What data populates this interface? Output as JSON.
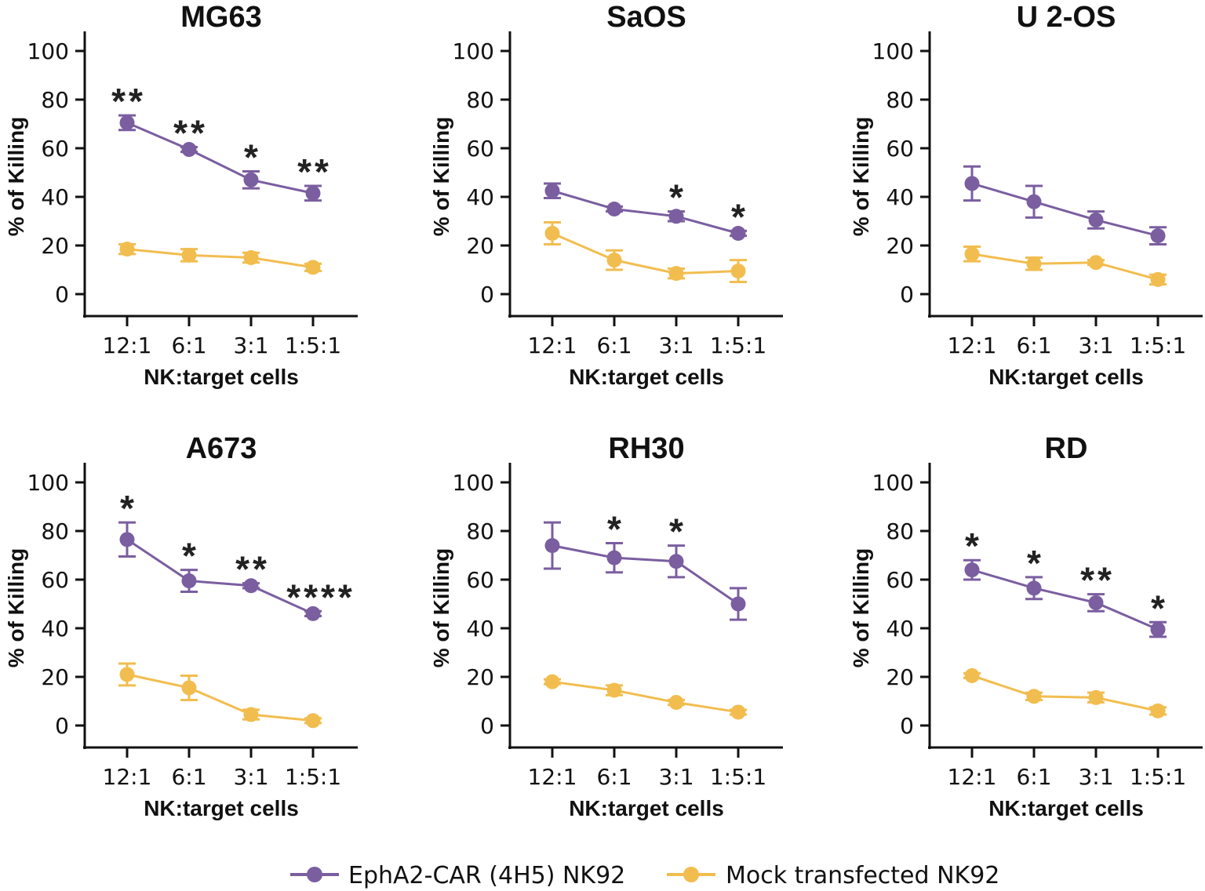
{
  "colors": {
    "car": "#7a5ea0",
    "mock": "#f2bd4f"
  },
  "chart_data": [
    {
      "type": "line",
      "title": "MG63",
      "xlabel": "NK:target cells",
      "ylabel": "% of Killing",
      "ylim": [
        0,
        100
      ],
      "yticks": [
        0,
        20,
        40,
        60,
        80,
        100
      ],
      "categories": [
        "12:1",
        "6:1",
        "3:1",
        "1:5:1"
      ],
      "series": [
        {
          "name": "EphA2-CAR (4H5) NK92",
          "values": [
            70.5,
            59.5,
            47,
            41.5
          ],
          "errors": [
            3,
            1,
            3.5,
            3
          ]
        },
        {
          "name": "Mock transfected NK92",
          "values": [
            18.5,
            16,
            15,
            11
          ],
          "errors": [
            2,
            2.5,
            2,
            1.5
          ]
        }
      ],
      "significance": [
        "**",
        "**",
        "*",
        "**"
      ]
    },
    {
      "type": "line",
      "title": "SaOS",
      "xlabel": "NK:target cells",
      "ylabel": "% of Killing",
      "ylim": [
        0,
        100
      ],
      "yticks": [
        0,
        20,
        40,
        60,
        80,
        100
      ],
      "categories": [
        "12:1",
        "6:1",
        "3:1",
        "1:5:1"
      ],
      "series": [
        {
          "name": "EphA2-CAR (4H5) NK92",
          "values": [
            42.5,
            35,
            32,
            25
          ],
          "errors": [
            3,
            1,
            2,
            1
          ]
        },
        {
          "name": "Mock transfected NK92",
          "values": [
            25,
            14,
            8.5,
            9.5
          ],
          "errors": [
            4.5,
            4,
            2,
            4.5
          ]
        }
      ],
      "significance": [
        "",
        "",
        "*",
        "*"
      ]
    },
    {
      "type": "line",
      "title": "U 2-OS",
      "xlabel": "NK:target cells",
      "ylabel": "% of Killing",
      "ylim": [
        0,
        100
      ],
      "yticks": [
        0,
        20,
        40,
        60,
        80,
        100
      ],
      "categories": [
        "12:1",
        "6:1",
        "3:1",
        "1:5:1"
      ],
      "series": [
        {
          "name": "EphA2-CAR (4H5) NK92",
          "values": [
            45.5,
            38,
            30.5,
            24
          ],
          "errors": [
            7,
            6.5,
            3.5,
            3.5
          ]
        },
        {
          "name": "Mock transfected NK92",
          "values": [
            16.5,
            12.5,
            13,
            6
          ],
          "errors": [
            3,
            2.5,
            1,
            2
          ]
        }
      ],
      "significance": [
        "",
        "",
        "",
        ""
      ]
    },
    {
      "type": "line",
      "title": "A673",
      "xlabel": "NK:target cells",
      "ylabel": "% of Killing",
      "ylim": [
        0,
        100
      ],
      "yticks": [
        0,
        20,
        40,
        60,
        80,
        100
      ],
      "categories": [
        "12:1",
        "6:1",
        "3:1",
        "1:5:1"
      ],
      "series": [
        {
          "name": "EphA2-CAR (4H5) NK92",
          "values": [
            76.5,
            59.5,
            57.5,
            46
          ],
          "errors": [
            7,
            4.5,
            1,
            1
          ]
        },
        {
          "name": "Mock transfected NK92",
          "values": [
            21,
            15.5,
            4.5,
            2
          ],
          "errors": [
            4.5,
            5,
            2,
            1
          ]
        }
      ],
      "significance": [
        "*",
        "*",
        "**",
        "****"
      ]
    },
    {
      "type": "line",
      "title": "RH30",
      "xlabel": "NK:target cells",
      "ylabel": "% of Killing",
      "ylim": [
        0,
        100
      ],
      "yticks": [
        0,
        20,
        40,
        60,
        80,
        100
      ],
      "categories": [
        "12:1",
        "6:1",
        "3:1",
        "1:5:1"
      ],
      "series": [
        {
          "name": "EphA2-CAR (4H5) NK92",
          "values": [
            74,
            69,
            67.5,
            50
          ],
          "errors": [
            9.5,
            6,
            6.5,
            6.5
          ]
        },
        {
          "name": "Mock transfected NK92",
          "values": [
            18,
            14.5,
            9.5,
            5.5
          ],
          "errors": [
            1,
            2,
            1,
            1
          ]
        }
      ],
      "significance": [
        "",
        "*",
        "*",
        ""
      ]
    },
    {
      "type": "line",
      "title": "RD",
      "xlabel": "NK:target cells",
      "ylabel": "% of Killing",
      "ylim": [
        0,
        100
      ],
      "yticks": [
        0,
        20,
        40,
        60,
        80,
        100
      ],
      "categories": [
        "12:1",
        "6:1",
        "3:1",
        "1:5:1"
      ],
      "series": [
        {
          "name": "EphA2-CAR (4H5) NK92",
          "values": [
            64,
            56.5,
            50.5,
            39.5
          ],
          "errors": [
            4,
            4.5,
            3.5,
            3
          ]
        },
        {
          "name": "Mock transfected NK92",
          "values": [
            20.5,
            12,
            11.5,
            6
          ],
          "errors": [
            1,
            1.5,
            2,
            1.5
          ]
        }
      ],
      "significance": [
        "*",
        "*",
        "**",
        "*"
      ]
    }
  ],
  "legend": {
    "placement": "bottom",
    "items": [
      "EphA2-CAR (4H5) NK92",
      "Mock transfected NK92"
    ]
  }
}
